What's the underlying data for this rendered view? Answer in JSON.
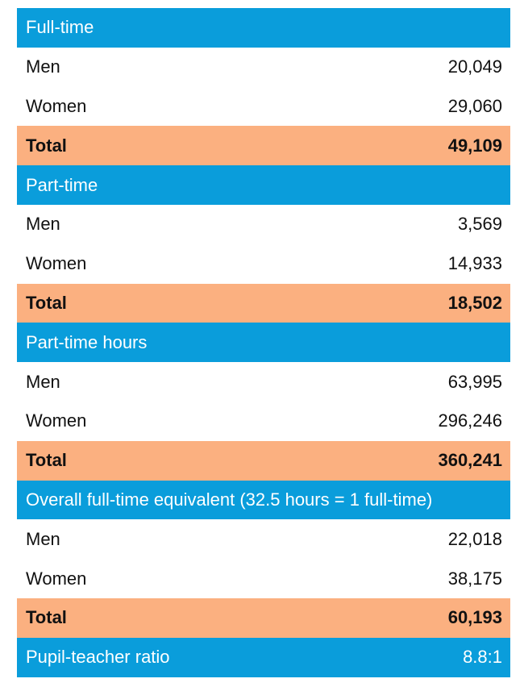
{
  "sections": [
    {
      "header": "Full-time",
      "men_label": "Men",
      "men_value": "20,049",
      "women_label": "Women",
      "women_value": "29,060",
      "total_label": "Total",
      "total_value": "49,109"
    },
    {
      "header": "Part-time",
      "men_label": "Men",
      "men_value": "3,569",
      "women_label": "Women",
      "women_value": "14,933",
      "total_label": "Total",
      "total_value": "18,502"
    },
    {
      "header": "Part-time hours",
      "men_label": "Men",
      "men_value": "63,995",
      "women_label": "Women",
      "women_value": "296,246",
      "total_label": "Total",
      "total_value": "360,241"
    },
    {
      "header": "Overall full-time equivalent (32.5 hours = 1 full-time)",
      "men_label": "Men",
      "men_value": "22,018",
      "women_label": "Women",
      "women_value": "38,175",
      "total_label": "Total",
      "total_value": "60,193"
    }
  ],
  "footer": {
    "label": "Pupil-teacher ratio",
    "value": "8.8:1"
  },
  "colors": {
    "header_bg": "#0a9ddb",
    "total_bg": "#fbb080"
  }
}
